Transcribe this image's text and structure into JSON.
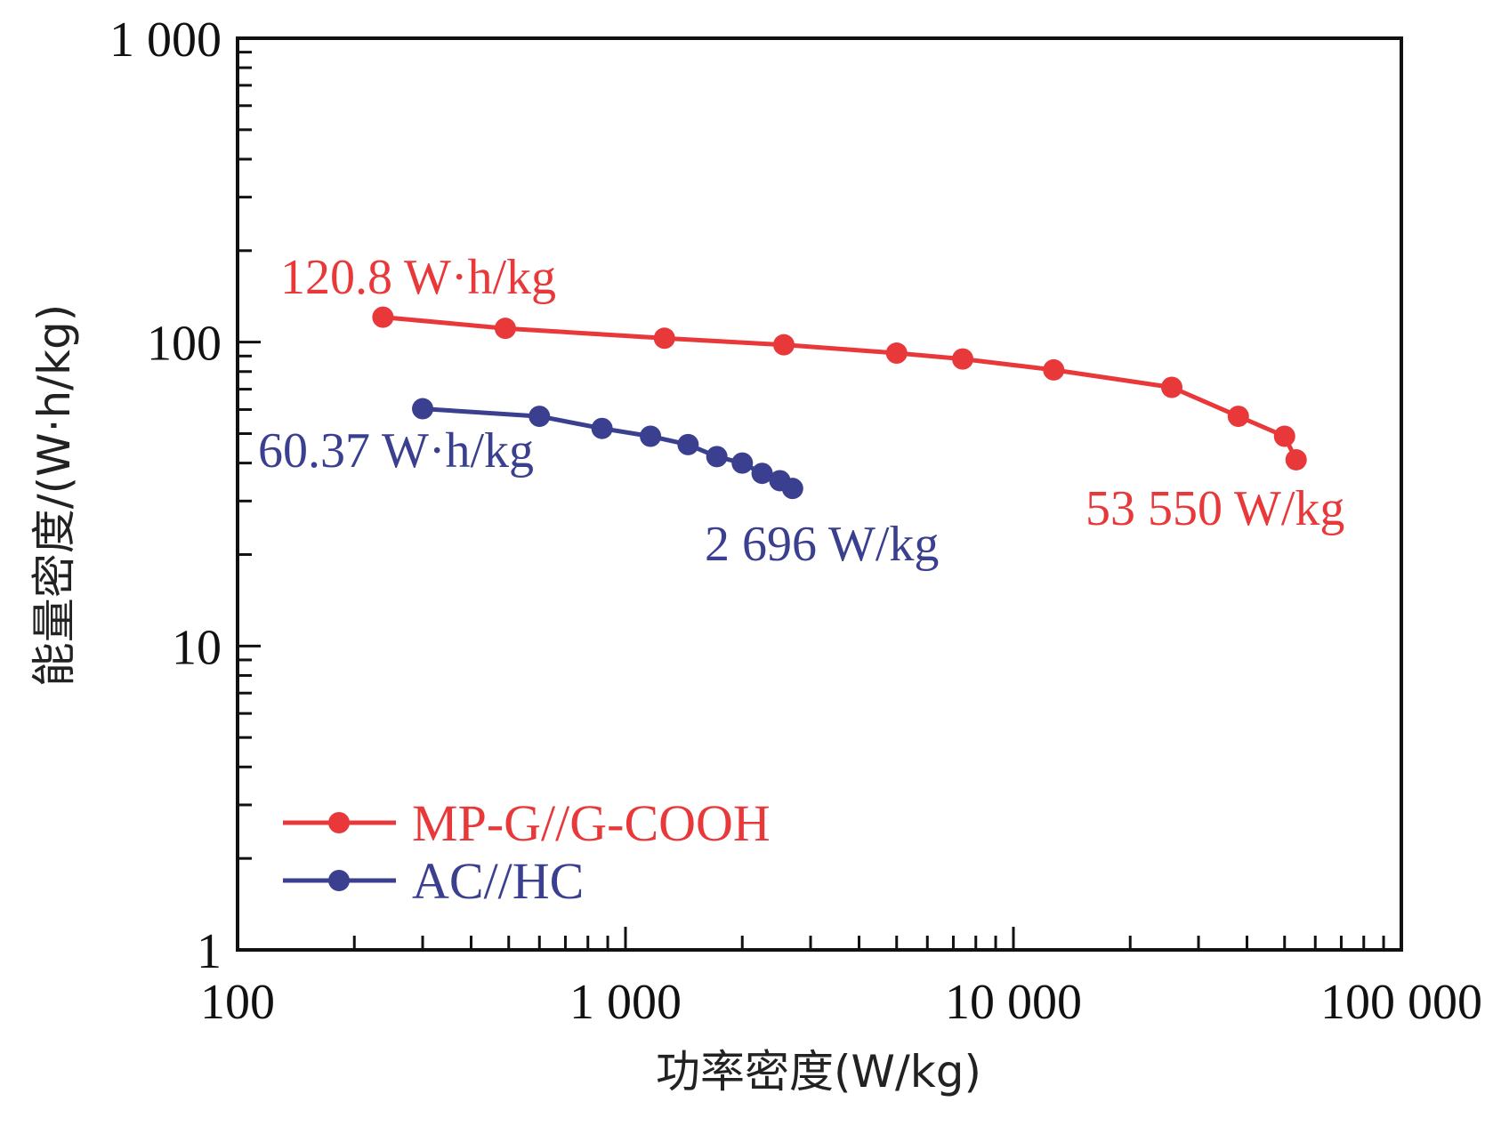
{
  "chart_data": {
    "type": "line",
    "xlabel": "功率密度(W/kg)",
    "ylabel": "能量密度/(W·h/kg)",
    "x_scale": "log",
    "y_scale": "log",
    "xlim": [
      100,
      100000
    ],
    "ylim": [
      1,
      1000
    ],
    "x_ticks": [
      {
        "value": 100,
        "label": "100"
      },
      {
        "value": 1000,
        "label": "1 000"
      },
      {
        "value": 10000,
        "label": "10 000"
      },
      {
        "value": 100000,
        "label": "100 000"
      }
    ],
    "y_ticks": [
      {
        "value": 1,
        "label": "1"
      },
      {
        "value": 10,
        "label": "10"
      },
      {
        "value": 100,
        "label": "100"
      },
      {
        "value": 1000,
        "label": "1 000"
      }
    ],
    "grid": false,
    "legend_position": "bottom-left",
    "series": [
      {
        "name": "MP-G//G-COOH",
        "color": "#e8383a",
        "x": [
          237,
          490,
          1260,
          2560,
          5000,
          7400,
          12700,
          25600,
          38000,
          50000,
          53550
        ],
        "y": [
          120.8,
          111,
          103,
          98,
          92,
          88,
          81,
          71,
          57,
          49,
          41
        ]
      },
      {
        "name": "AC//HC",
        "color": "#3a3f8f",
        "x": [
          300,
          600,
          870,
          1160,
          1450,
          1720,
          2000,
          2250,
          2500,
          2696
        ],
        "y": [
          60.37,
          57,
          52,
          49,
          46,
          42,
          40,
          37,
          35,
          33
        ]
      }
    ],
    "annotations": [
      {
        "text": "120.8 W·h/kg",
        "color": "#e8383a"
      },
      {
        "text": "53 550 W/kg",
        "color": "#e8383a"
      },
      {
        "text": "60.37 W·h/kg",
        "color": "#3a3f8f"
      },
      {
        "text": "2 696 W/kg",
        "color": "#3a3f8f"
      }
    ]
  }
}
